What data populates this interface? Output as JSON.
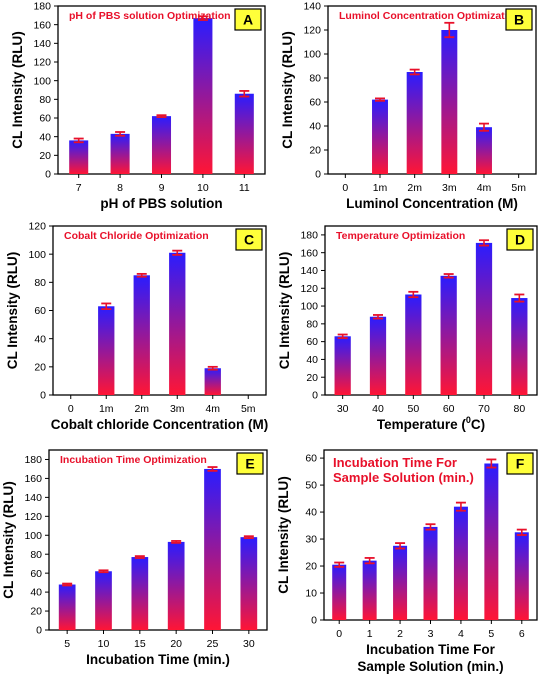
{
  "colors": {
    "bar_top": "#2a1cff",
    "bar_bottom": "#ff1535",
    "error_bar": "#e8102a",
    "title_text": "#e8102a",
    "badge_fill": "#ffff3a"
  },
  "chart_data": [
    {
      "type": "bar",
      "badge": "A",
      "title": "pH of PBS solution Optimization",
      "xlabel": "pH of PBS solution",
      "ylabel": "CL Intensity (RLU)",
      "categories": [
        "7",
        "8",
        "9",
        "10",
        "11"
      ],
      "values": [
        36,
        43,
        62,
        167,
        86
      ],
      "errors": [
        2,
        2,
        1,
        2,
        3
      ],
      "ylim": [
        0,
        180
      ],
      "yticks": [
        0,
        20,
        40,
        60,
        80,
        100,
        120,
        140,
        160,
        180
      ],
      "yticklabels": [
        "0",
        "20",
        "40",
        "60",
        "80",
        "100",
        "120",
        "140",
        "160",
        "180"
      ]
    },
    {
      "type": "bar",
      "badge": "B",
      "title": "Luminol Concentration Optimization",
      "xlabel": "Luminol Concentration (M)",
      "ylabel": "CL Intensity (RLU)",
      "categories": [
        "0",
        "1m",
        "2m",
        "3m",
        "4m",
        "5m"
      ],
      "values": [
        null,
        62,
        85,
        120,
        39,
        null
      ],
      "errors": [
        null,
        1,
        2,
        6,
        3,
        null
      ],
      "ylim": [
        0,
        140
      ],
      "yticks": [
        0,
        20,
        40,
        60,
        80,
        100,
        120,
        140
      ],
      "yticklabels": [
        "0",
        "20",
        "40",
        "60",
        "80",
        "100",
        "120",
        "140"
      ]
    },
    {
      "type": "bar",
      "badge": "C",
      "title": "Cobalt Chloride Optimization",
      "xlabel": "Cobalt chloride Concentration (M)",
      "ylabel": "CL Intensity (RLU)",
      "categories": [
        "0",
        "1m",
        "2m",
        "3m",
        "4m",
        "5m"
      ],
      "values": [
        null,
        63,
        85,
        101,
        19,
        null
      ],
      "errors": [
        null,
        2,
        1,
        1.5,
        1,
        null
      ],
      "ylim": [
        0,
        120
      ],
      "yticks": [
        0,
        20,
        40,
        60,
        80,
        100,
        120
      ],
      "yticklabels": [
        "0",
        "20",
        "40",
        "60",
        "80",
        "100",
        "120"
      ]
    },
    {
      "type": "bar",
      "badge": "D",
      "title": "Temperature Optimization",
      "xlabel": "Temperature (",
      "xlabel_sup": "0",
      "xlabel_tail": "C)",
      "ylabel": "CL Intensity (RLU)",
      "categories": [
        "30",
        "40",
        "50",
        "60",
        "70",
        "80"
      ],
      "values": [
        66,
        88,
        113,
        134,
        171,
        109
      ],
      "errors": [
        2,
        2,
        3,
        2,
        3,
        4
      ],
      "ylim": [
        0,
        190
      ],
      "yticks": [
        0,
        20,
        40,
        60,
        80,
        100,
        120,
        140,
        160,
        180
      ],
      "yticklabels": [
        "0",
        "20",
        "40",
        "60",
        "80",
        "100",
        "120",
        "140",
        "160",
        "180"
      ]
    },
    {
      "type": "bar",
      "badge": "E",
      "title": "Incubation Time Optimization",
      "xlabel": "Incubation Time (min.)",
      "ylabel": "CL Intensity (RLU)",
      "categories": [
        "5",
        "10",
        "15",
        "20",
        "25",
        "30"
      ],
      "values": [
        48,
        62,
        77,
        93,
        170,
        98
      ],
      "errors": [
        1,
        1,
        1,
        1,
        2,
        1
      ],
      "ylim": [
        0,
        190
      ],
      "yticks": [
        0,
        20,
        40,
        60,
        80,
        100,
        120,
        140,
        160,
        180
      ],
      "yticklabels": [
        "0",
        "20",
        "40",
        "60",
        "80",
        "100",
        "120",
        "140",
        "160",
        "180"
      ]
    },
    {
      "type": "bar",
      "badge": "F",
      "title_lines": [
        "Incubation Time For",
        "Sample Solution (min.)"
      ],
      "xlabel_lines": [
        "Incubation Time For",
        "Sample Solution (min.)"
      ],
      "ylabel": "CL Intensity (RLU)",
      "categories": [
        "0",
        "1",
        "2",
        "3",
        "4",
        "5",
        "6"
      ],
      "values": [
        20.5,
        22,
        27.5,
        34.5,
        42,
        58,
        32.5
      ],
      "errors": [
        0.8,
        1,
        1,
        1,
        1.5,
        1.5,
        1
      ],
      "ylim": [
        0,
        63
      ],
      "yticks": [
        0,
        10,
        20,
        30,
        40,
        50,
        60
      ],
      "yticklabels": [
        "0",
        "10",
        "20",
        "30",
        "40",
        "50",
        "60"
      ]
    }
  ]
}
